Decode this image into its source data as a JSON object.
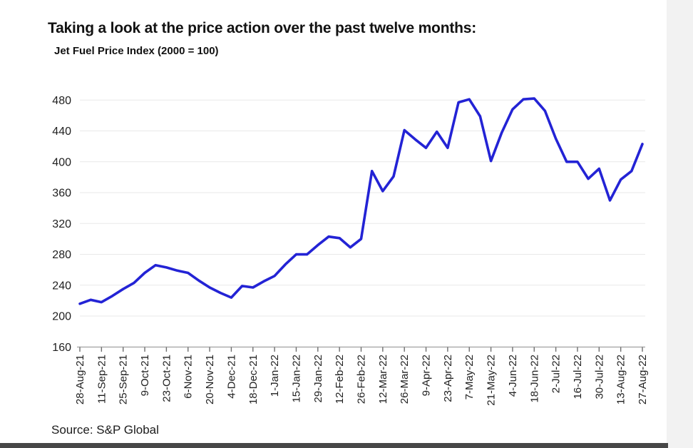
{
  "page": {
    "background": "#ffffff",
    "right_strip_color": "#f2f2f2",
    "bottom_bar_color": "#474747"
  },
  "header": {
    "title": "Taking a look at the price action over the past twelve months:",
    "subtitle": "Jet Fuel Price Index (2000 = 100)"
  },
  "footer": {
    "source": "Source: S&P Global"
  },
  "chart_data": {
    "type": "line",
    "title": "Jet Fuel Price Index (2000 = 100)",
    "xlabel": "",
    "ylabel": "",
    "legend": "none",
    "grid": true,
    "ylim": [
      160,
      480
    ],
    "y_ticks": [
      160,
      200,
      240,
      280,
      320,
      360,
      400,
      440,
      480
    ],
    "series_color": "#2323d5",
    "grid_color": "#e9e9e9",
    "axis_color": "#aeaeae",
    "tick_color": "#6f6f6f",
    "label_color": "#1f1f1f",
    "x_tick_labels": [
      "28-Aug-21",
      "11-Sep-21",
      "25-Sep-21",
      "9-Oct-21",
      "23-Oct-21",
      "6-Nov-21",
      "20-Nov-21",
      "4-Dec-21",
      "18-Dec-21",
      "1-Jan-22",
      "15-Jan-22",
      "29-Jan-22",
      "12-Feb-22",
      "26-Feb-22",
      "12-Mar-22",
      "26-Mar-22",
      "9-Apr-22",
      "23-Apr-22",
      "7-May-22",
      "21-May-22",
      "4-Jun-22",
      "18-Jun-22",
      "2-Jul-22",
      "16-Jul-22",
      "30-Jul-22",
      "13-Aug-22",
      "27-Aug-22"
    ],
    "x": [
      "28-Aug-21",
      "4-Sep-21",
      "11-Sep-21",
      "18-Sep-21",
      "25-Sep-21",
      "2-Oct-21",
      "9-Oct-21",
      "16-Oct-21",
      "23-Oct-21",
      "30-Oct-21",
      "6-Nov-21",
      "13-Nov-21",
      "20-Nov-21",
      "27-Nov-21",
      "4-Dec-21",
      "11-Dec-21",
      "18-Dec-21",
      "25-Dec-21",
      "1-Jan-22",
      "8-Jan-22",
      "15-Jan-22",
      "22-Jan-22",
      "29-Jan-22",
      "5-Feb-22",
      "12-Feb-22",
      "19-Feb-22",
      "26-Feb-22",
      "5-Mar-22",
      "12-Mar-22",
      "19-Mar-22",
      "26-Mar-22",
      "2-Apr-22",
      "9-Apr-22",
      "16-Apr-22",
      "23-Apr-22",
      "30-Apr-22",
      "7-May-22",
      "14-May-22",
      "21-May-22",
      "28-May-22",
      "4-Jun-22",
      "11-Jun-22",
      "18-Jun-22",
      "25-Jun-22",
      "2-Jul-22",
      "9-Jul-22",
      "16-Jul-22",
      "23-Jul-22",
      "30-Jul-22",
      "6-Aug-22",
      "13-Aug-22",
      "20-Aug-22",
      "27-Aug-22"
    ],
    "values": [
      216,
      221,
      218,
      226,
      235,
      243,
      256,
      266,
      263,
      259,
      256,
      246,
      237,
      230,
      224,
      239,
      237,
      245,
      252,
      267,
      280,
      280,
      292,
      303,
      301,
      289,
      300,
      388,
      362,
      381,
      441,
      429,
      418,
      439,
      418,
      477,
      481,
      459,
      401,
      438,
      468,
      481,
      482,
      466,
      430,
      400,
      400,
      378,
      391,
      350,
      377,
      388,
      423
    ]
  }
}
